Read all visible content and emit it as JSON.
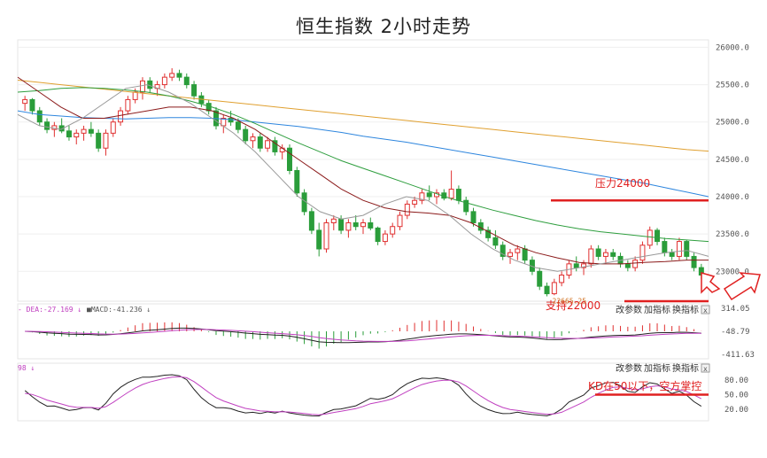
{
  "title": "恒生指数 2小时走势",
  "chart_data": {
    "type": "candlestick",
    "title": "恒生指数 2小时走势",
    "price_axis": {
      "min": 22600,
      "max": 26100,
      "ticks": [
        "26000.0",
        "25500.0",
        "25000.0",
        "24500.0",
        "24000.0",
        "23500.0",
        "23000.0"
      ],
      "tick_values": [
        26000,
        25500,
        25000,
        24500,
        24000,
        23500,
        23000
      ]
    },
    "candles": [
      [
        25250,
        25350,
        25150,
        25300
      ],
      [
        25300,
        25320,
        25100,
        25150
      ],
      [
        25150,
        25200,
        24950,
        25000
      ],
      [
        25000,
        25050,
        24850,
        24900
      ],
      [
        24900,
        25000,
        24800,
        24950
      ],
      [
        24950,
        25050,
        24850,
        24880
      ],
      [
        24880,
        24950,
        24750,
        24800
      ],
      [
        24800,
        24900,
        24700,
        24850
      ],
      [
        24850,
        24950,
        24750,
        24900
      ],
      [
        24900,
        25000,
        24800,
        24850
      ],
      [
        24850,
        24900,
        24600,
        24650
      ],
      [
        24650,
        24900,
        24550,
        24850
      ],
      [
        24850,
        25050,
        24800,
        25000
      ],
      [
        25000,
        25200,
        24950,
        25150
      ],
      [
        25150,
        25350,
        25100,
        25300
      ],
      [
        25300,
        25450,
        25250,
        25400
      ],
      [
        25400,
        25600,
        25300,
        25550
      ],
      [
        25550,
        25600,
        25400,
        25450
      ],
      [
        25450,
        25550,
        25350,
        25500
      ],
      [
        25500,
        25650,
        25450,
        25600
      ],
      [
        25600,
        25720,
        25550,
        25650
      ],
      [
        25650,
        25700,
        25550,
        25600
      ],
      [
        25600,
        25650,
        25450,
        25500
      ],
      [
        25500,
        25550,
        25300,
        25350
      ],
      [
        25350,
        25400,
        25200,
        25250
      ],
      [
        25250,
        25300,
        25100,
        25150
      ],
      [
        25150,
        25200,
        24900,
        24950
      ],
      [
        24950,
        25100,
        24850,
        25050
      ],
      [
        25050,
        25150,
        24950,
        25000
      ],
      [
        25000,
        25050,
        24850,
        24900
      ],
      [
        24900,
        24950,
        24700,
        24750
      ],
      [
        24750,
        24850,
        24650,
        24800
      ],
      [
        24800,
        24850,
        24600,
        24650
      ],
      [
        24650,
        24800,
        24600,
        24750
      ],
      [
        24750,
        24800,
        24550,
        24600
      ],
      [
        24600,
        24700,
        24500,
        24650
      ],
      [
        24650,
        24700,
        24300,
        24350
      ],
      [
        24350,
        24400,
        24000,
        24050
      ],
      [
        24050,
        24100,
        23750,
        23800
      ],
      [
        23800,
        23850,
        23500,
        23550
      ],
      [
        23550,
        23650,
        23200,
        23300
      ],
      [
        23300,
        23700,
        23250,
        23650
      ],
      [
        23650,
        23750,
        23550,
        23700
      ],
      [
        23700,
        23750,
        23500,
        23550
      ],
      [
        23550,
        23700,
        23450,
        23650
      ],
      [
        23650,
        23750,
        23550,
        23600
      ],
      [
        23600,
        23700,
        23500,
        23650
      ],
      [
        23650,
        23720,
        23550,
        23580
      ],
      [
        23580,
        23600,
        23350,
        23400
      ],
      [
        23400,
        23550,
        23350,
        23500
      ],
      [
        23500,
        23650,
        23450,
        23600
      ],
      [
        23600,
        23800,
        23550,
        23750
      ],
      [
        23750,
        23950,
        23700,
        23900
      ],
      [
        23900,
        24000,
        23850,
        23950
      ],
      [
        23950,
        24100,
        23900,
        24050
      ],
      [
        24050,
        24150,
        23950,
        24000
      ],
      [
        24000,
        24100,
        23900,
        24050
      ],
      [
        24050,
        24100,
        23950,
        23980
      ],
      [
        23980,
        24350,
        23950,
        24100
      ],
      [
        24100,
        24150,
        23900,
        23950
      ],
      [
        23950,
        24000,
        23750,
        23800
      ],
      [
        23800,
        23850,
        23600,
        23650
      ],
      [
        23650,
        23700,
        23500,
        23550
      ],
      [
        23550,
        23600,
        23400,
        23450
      ],
      [
        23450,
        23550,
        23300,
        23350
      ],
      [
        23350,
        23400,
        23150,
        23200
      ],
      [
        23200,
        23300,
        23100,
        23250
      ],
      [
        23250,
        23350,
        23150,
        23300
      ],
      [
        23300,
        23350,
        23100,
        23150
      ],
      [
        23150,
        23200,
        22950,
        23000
      ],
      [
        23000,
        23050,
        22750,
        22800
      ],
      [
        22800,
        22850,
        22665,
        22700
      ],
      [
        22700,
        22900,
        22680,
        22850
      ],
      [
        22850,
        23000,
        22800,
        22950
      ],
      [
        22950,
        23150,
        22900,
        23100
      ],
      [
        23100,
        23200,
        23000,
        23050
      ],
      [
        23050,
        23150,
        22950,
        23100
      ],
      [
        23100,
        23350,
        23050,
        23300
      ],
      [
        23300,
        23350,
        23150,
        23200
      ],
      [
        23200,
        23300,
        23100,
        23250
      ],
      [
        23250,
        23300,
        23150,
        23200
      ],
      [
        23200,
        23250,
        23050,
        23100
      ],
      [
        23100,
        23150,
        23000,
        23050
      ],
      [
        23050,
        23200,
        23000,
        23150
      ],
      [
        23150,
        23400,
        23100,
        23350
      ],
      [
        23350,
        23600,
        23300,
        23550
      ],
      [
        23550,
        23580,
        23350,
        23400
      ],
      [
        23400,
        23450,
        23200,
        23250
      ],
      [
        23250,
        23300,
        23150,
        23200
      ],
      [
        23200,
        23450,
        23150,
        23400
      ],
      [
        23400,
        23420,
        23150,
        23200
      ],
      [
        23200,
        23250,
        23000,
        23050
      ],
      [
        23050,
        23100,
        22900,
        22950
      ]
    ],
    "ma_series": [
      {
        "color": "#e0a030",
        "values": [
          25560,
          25530,
          25500,
          25470,
          25440,
          25410,
          25380,
          25350,
          25320,
          25290,
          25260,
          25230,
          25200,
          25170,
          25140,
          25110,
          25080,
          25050,
          25020,
          24990,
          24960,
          24930,
          24900,
          24870,
          24840,
          24810,
          24780,
          24750,
          24720,
          24690,
          24660,
          24630,
          24610
        ]
      },
      {
        "color": "#2e86de",
        "values": [
          25150,
          25100,
          25080,
          25060,
          25050,
          25040,
          25050,
          25060,
          25060,
          25050,
          25030,
          25000,
          24970,
          24940,
          24900,
          24860,
          24810,
          24770,
          24730,
          24680,
          24630,
          24580,
          24530,
          24480,
          24430,
          24380,
          24330,
          24280,
          24230,
          24180,
          24120,
          24060,
          24000
        ]
      },
      {
        "color": "#2e9e3e",
        "values": [
          25400,
          25420,
          25450,
          25460,
          25450,
          25430,
          25400,
          25350,
          25280,
          25200,
          25100,
          24980,
          24850,
          24720,
          24600,
          24480,
          24380,
          24280,
          24180,
          24080,
          23980,
          23900,
          23820,
          23750,
          23680,
          23620,
          23570,
          23530,
          23500,
          23470,
          23440,
          23420,
          23400
        ]
      },
      {
        "color": "#8b1a1a",
        "values": [
          25600,
          25400,
          25200,
          25050,
          25050,
          25100,
          25150,
          25200,
          25200,
          25150,
          25050,
          24900,
          24700,
          24500,
          24300,
          24100,
          23950,
          23850,
          23800,
          23780,
          23750,
          23650,
          23500,
          23350,
          23250,
          23180,
          23120,
          23100,
          23100,
          23120,
          23130,
          23150,
          23150
        ]
      },
      {
        "color": "#999999",
        "values": [
          25100,
          24950,
          24900,
          25050,
          25250,
          25450,
          25500,
          25400,
          25250,
          25050,
          24850,
          24600,
          24300,
          24000,
          23800,
          23700,
          23750,
          23900,
          24000,
          23950,
          23750,
          23500,
          23300,
          23150,
          23050,
          23000,
          23050,
          23100,
          23150,
          23200,
          23250,
          23280,
          23200
        ]
      }
    ],
    "annotations": [
      {
        "text": "压力24000",
        "price": 23950,
        "color": "#e02020"
      },
      {
        "text": "支持22000",
        "color": "#e02020"
      },
      {
        "text": "22665.25",
        "price": 22665,
        "color": "#d07020"
      }
    ],
    "macd": {
      "label_dea": "DEA:-27.169",
      "label_macd": "MACD:-41.236",
      "ticks": [
        "314.05",
        "-48.79",
        "-411.63"
      ],
      "tick_values": [
        314.05,
        -48.79,
        -411.63
      ],
      "toolbar": [
        "改参数",
        "加指标",
        "换指标"
      ]
    },
    "kdj": {
      "label": "98",
      "ticks": [
        "80.00",
        "50.00",
        "20.00"
      ],
      "tick_values": [
        80,
        50,
        20
      ],
      "toolbar": [
        "改参数",
        "加指标",
        "换指标"
      ],
      "annotation": "KD在50以下，空方掌控"
    }
  }
}
